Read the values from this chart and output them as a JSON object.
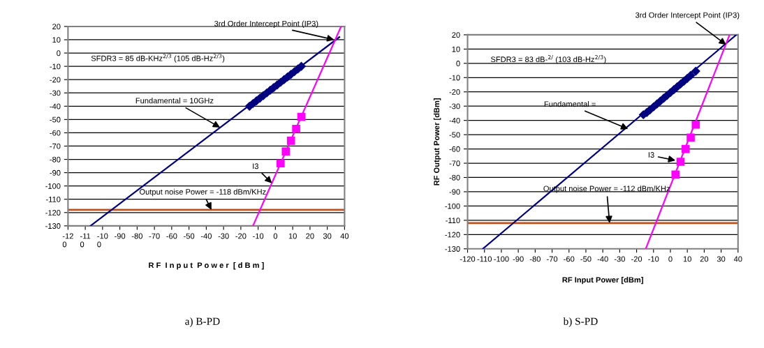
{
  "chart_data": [
    {
      "type": "line",
      "xlabel": "R F  I n p u t  P o w e r  [ d B m ]",
      "xlim": [
        -120,
        40
      ],
      "ylim": [
        -130,
        20
      ],
      "xticks": [
        {
          "value": -120,
          "label": "-12\n0"
        },
        {
          "value": -110,
          "label": "-11\n0"
        },
        {
          "value": -100,
          "label": "-10\n0"
        },
        -90,
        -80,
        -70,
        -60,
        -50,
        -40,
        -30,
        -20,
        -10,
        0,
        10,
        20,
        30,
        40
      ],
      "yticks": [
        -130,
        -120,
        -110,
        -100,
        -90,
        -80,
        -70,
        -60,
        -50,
        -40,
        -30,
        -20,
        -10,
        0,
        10,
        20
      ],
      "grid": "y",
      "series": [
        {
          "type": "line",
          "color": "#000080",
          "x": [
            -107,
            37
          ],
          "values": [
            -130,
            12
          ],
          "marker": "none"
        },
        {
          "type": "scatter",
          "color": "#000080",
          "marker": "diamond",
          "x": [
            -15,
            -13,
            -11,
            -9,
            -7,
            -5,
            -3,
            -1,
            1,
            3,
            5,
            7,
            9,
            11,
            13,
            15
          ],
          "values": [
            -40,
            -38,
            -36,
            -34,
            -32,
            -30,
            -28,
            -26,
            -24,
            -22,
            -20,
            -18,
            -16,
            -14,
            -12,
            -10
          ]
        },
        {
          "type": "line",
          "color": "#ff00ff",
          "x": [
            -13,
            38
          ],
          "values": [
            -130,
            20
          ],
          "marker": "none"
        },
        {
          "type": "scatter",
          "color": "#ff00ff",
          "marker": "square",
          "x": [
            3,
            6,
            9,
            12,
            15
          ],
          "values": [
            -83,
            -74,
            -66,
            -57,
            -48
          ]
        }
      ],
      "ref_lines": [
        {
          "axis": "y",
          "value": -118,
          "color": "#c0501a"
        }
      ],
      "annotations": [
        {
          "text": "3rd Order Intercept Point (IP3)",
          "x": 34,
          "y": 10
        },
        {
          "text": "Fundamental = 10GHz",
          "x": -32,
          "y": -56
        },
        {
          "text": "I3",
          "x": -2,
          "y": -98
        },
        {
          "text": "Output noise Power = -118 dBm/KHz",
          "x": -37,
          "y": -118
        },
        "SFDR3 = 85 dB-KHz$^{2/3}$ (105 dB-Hz$^{2/3}$)",
        "a) B-PD"
      ]
    },
    {
      "type": "line",
      "xlabel": "RF Input Power [dBm]",
      "ylabel": "RF Output Power [dBm]",
      "xlim": [
        -120,
        40
      ],
      "ylim": [
        -130,
        20
      ],
      "xticks": [
        -120,
        -110,
        -100,
        -90,
        -80,
        -70,
        -60,
        -50,
        -40,
        -30,
        -20,
        -10,
        0,
        10,
        20,
        30,
        40
      ],
      "yticks": [
        -130,
        -120,
        -110,
        -100,
        -90,
        -80,
        -70,
        -60,
        -50,
        -40,
        -30,
        -20,
        -10,
        0,
        10,
        20
      ],
      "grid": "y",
      "series": [
        {
          "type": "line",
          "color": "#000080",
          "x": [
            -111,
            39
          ],
          "values": [
            -130,
            20
          ],
          "marker": "none"
        },
        {
          "type": "scatter",
          "color": "#000080",
          "marker": "diamond",
          "x": [
            -16,
            -14,
            -12,
            -10,
            -8,
            -6,
            -4,
            -2,
            0,
            2,
            4,
            6,
            8,
            10,
            12,
            15
          ],
          "values": [
            -36,
            -34.5,
            -32.5,
            -30.5,
            -28.5,
            -26.5,
            -24.5,
            -22.5,
            -20.5,
            -18.5,
            -16.5,
            -14.5,
            -12.5,
            -10.5,
            -8.5,
            -5.5
          ]
        },
        {
          "type": "line",
          "color": "#ff00ff",
          "x": [
            -14.6,
            35
          ],
          "values": [
            -130,
            20
          ],
          "marker": "none"
        },
        {
          "type": "scatter",
          "color": "#ff00ff",
          "marker": "square",
          "x": [
            3,
            6,
            9,
            12,
            15
          ],
          "values": [
            -78,
            -69,
            -60,
            -52,
            -43
          ]
        }
      ],
      "ref_lines": [
        {
          "axis": "y",
          "value": -112,
          "color": "#c0501a"
        }
      ],
      "annotations": [
        {
          "text": "3rd Order Intercept Point (IP3)",
          "x": 33,
          "y": 13
        },
        {
          "text": "Fundamental =",
          "x": -25,
          "y": -46
        },
        {
          "text": "I3",
          "x": 3,
          "y": -68
        },
        {
          "text": "Output noise Power = -112 dBm/KHz",
          "x": -36,
          "y": -112
        },
        "SFDR3 = 83 dB-$^{2/}$ (103 dB-Hz$^{2/3}$)",
        "b) S-PD"
      ]
    }
  ]
}
